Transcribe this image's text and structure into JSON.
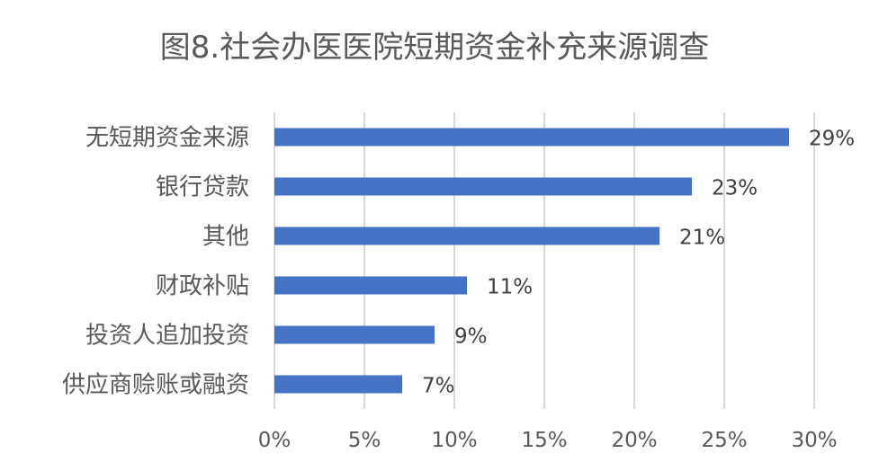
{
  "chart_data": {
    "type": "bar",
    "orientation": "horizontal",
    "title": "图8.社会办医医院短期资金补充来源调查",
    "xlabel": "",
    "ylabel": "",
    "categories": [
      "无短期资金来源",
      "银行贷款",
      "其他",
      "财政补贴",
      "投资人追加投资",
      "供应商赊账或融资"
    ],
    "values": [
      28.6,
      23.2,
      21.4,
      10.7,
      8.9,
      7.1
    ],
    "data_labels": [
      "29%",
      "23%",
      "21%",
      "11%",
      "9%",
      "7%"
    ],
    "xlim": [
      0,
      30
    ],
    "x_ticks": [
      0,
      5,
      10,
      15,
      20,
      25,
      30
    ],
    "x_tick_labels": [
      "0%",
      "5%",
      "10%",
      "15%",
      "20%",
      "25%",
      "30%"
    ],
    "grid": "vertical",
    "legend": "none",
    "colors": {
      "bar": "#4472c4",
      "grid": "#d9d9d9",
      "text": "#595959"
    }
  }
}
